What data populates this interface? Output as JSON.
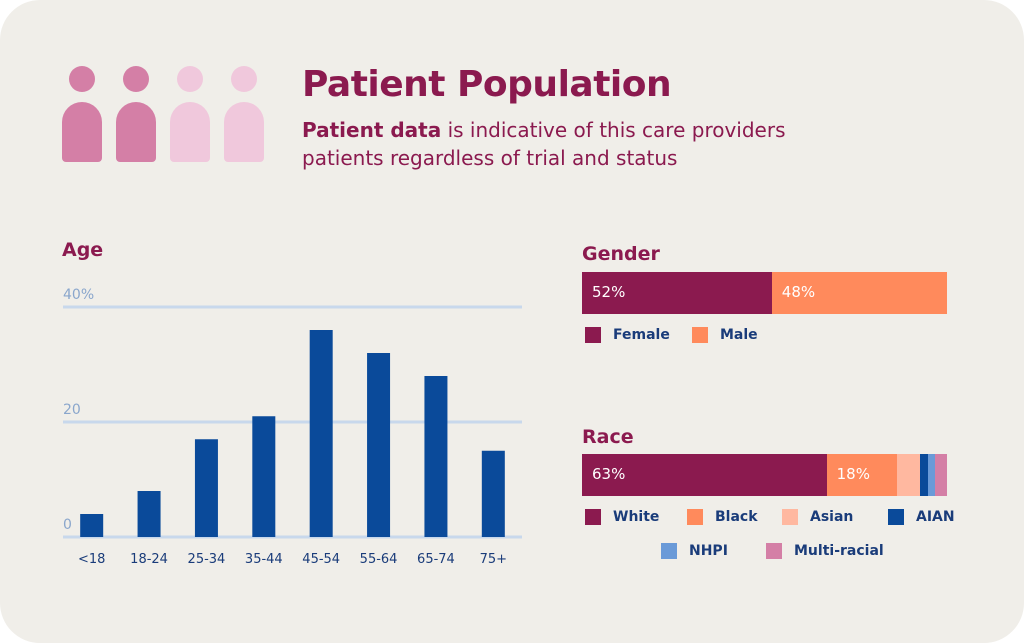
{
  "header": {
    "title": "Patient Population",
    "subtitle_bold": "Patient data",
    "subtitle_rest": " is indicative of this care providers patients regardless of trial and status"
  },
  "colors": {
    "accent": "#8b1a4f",
    "bar": "#0a4a9a",
    "female": "#8b1a4f",
    "male": "#ff8a5c",
    "white": "#8b1a4f",
    "black": "#ff8a5c",
    "asian": "#ffb8a0",
    "aian": "#0a4a9a",
    "nhpi": "#6a9ad8",
    "multiracial": "#d47fa6"
  },
  "chart_data": [
    {
      "type": "bar",
      "title": "Age",
      "categories": [
        "<18",
        "18-24",
        "25-34",
        "35-44",
        "45-54",
        "55-64",
        "65-74",
        "75+"
      ],
      "values": [
        4,
        8,
        17,
        21,
        36,
        32,
        28,
        15
      ],
      "ytick_labels": [
        "40%",
        "20",
        "0"
      ],
      "ylim": [
        0,
        40
      ],
      "grid": true
    },
    {
      "type": "bar",
      "title": "Gender",
      "series": [
        {
          "name": "Female",
          "value": 52,
          "label": "52%"
        },
        {
          "name": "Male",
          "value": 48,
          "label": "48%"
        }
      ]
    },
    {
      "type": "bar",
      "title": "Race",
      "series": [
        {
          "name": "White",
          "value": 63,
          "label": "63%"
        },
        {
          "name": "Black",
          "value": 18,
          "label": "18%"
        },
        {
          "name": "Asian",
          "value": 6,
          "label": ""
        },
        {
          "name": "AIAN",
          "value": 2,
          "label": ""
        },
        {
          "name": "NHPI",
          "value": 2,
          "label": ""
        },
        {
          "name": "Multi-racial",
          "value": 3,
          "label": ""
        }
      ]
    }
  ]
}
